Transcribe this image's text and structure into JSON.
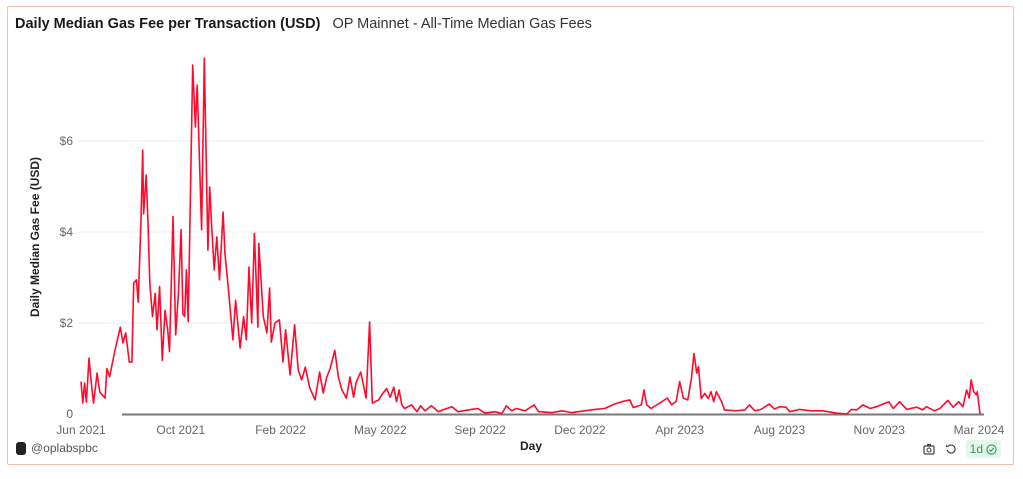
{
  "header": {
    "title": "Daily Median Gas Fee per Transaction (USD)",
    "subtitle": "OP Mainnet - All-Time Median Gas Fees"
  },
  "footer": {
    "author": "@oplabspbc",
    "refresh_badge": "1d",
    "icons": [
      "camera-icon",
      "refresh-icon",
      "check-circle-icon"
    ]
  },
  "colors": {
    "line": "#ff0a2c",
    "border": "#f4bfb0",
    "badge_bg": "#e3f6e9",
    "badge_text": "#2e9b52"
  },
  "chart_data": {
    "type": "line",
    "title": "Daily Median Gas Fee per Transaction (USD)",
    "xlabel": "Day",
    "ylabel": "Daily Median Gas Fee (USD)",
    "x_tick_labels": [
      "Jun 2021",
      "Oct 2021",
      "Feb 2022",
      "May 2022",
      "Sep 2022",
      "Dec 2022",
      "Apr 2023",
      "Aug 2023",
      "Nov 2023",
      "Mar 2024"
    ],
    "y_ticks": [
      0,
      2,
      4,
      6
    ],
    "y_tick_labels": [
      "0",
      "$2",
      "$4",
      "$6"
    ],
    "xlim": [
      "2021-06-01",
      "2024-03-03"
    ],
    "ylim": [
      0,
      7.9
    ],
    "grid": true,
    "legend": "none",
    "series": [
      {
        "x": [
          "2021-06-01",
          "2021-06-03",
          "2021-06-05",
          "2021-06-07",
          "2021-06-10",
          "2021-06-12",
          "2021-06-15",
          "2021-06-19",
          "2021-06-22",
          "2021-06-28",
          "2021-06-30",
          "2021-07-03",
          "2021-07-09",
          "2021-07-15",
          "2021-07-18",
          "2021-07-21",
          "2021-07-25",
          "2021-07-28",
          "2021-07-30",
          "2021-08-02",
          "2021-08-04",
          "2021-08-07",
          "2021-08-09",
          "2021-08-10",
          "2021-08-13",
          "2021-08-15",
          "2021-08-17",
          "2021-08-20",
          "2021-08-23",
          "2021-08-25",
          "2021-08-28",
          "2021-08-31",
          "2021-09-03",
          "2021-09-06",
          "2021-09-08",
          "2021-09-12",
          "2021-09-15",
          "2021-09-18",
          "2021-09-21",
          "2021-09-23",
          "2021-09-25",
          "2021-09-27",
          "2021-09-29",
          "2021-10-04",
          "2021-10-07",
          "2021-10-09",
          "2021-10-14",
          "2021-10-17",
          "2021-10-21",
          "2021-10-23",
          "2021-10-25",
          "2021-10-28",
          "2021-10-31",
          "2021-11-03",
          "2021-11-07",
          "2021-11-09",
          "2021-11-13",
          "2021-11-18",
          "2021-11-21",
          "2021-11-26",
          "2021-11-30",
          "2021-12-03",
          "2021-12-06",
          "2021-12-09",
          "2021-12-12",
          "2021-12-16",
          "2021-12-17",
          "2021-12-22",
          "2021-12-26",
          "2021-12-29",
          "2021-12-31",
          "2022-01-04",
          "2022-01-09",
          "2022-01-13",
          "2022-01-16",
          "2022-01-21",
          "2022-01-26",
          "2022-01-30",
          "2022-02-03",
          "2022-02-07",
          "2022-02-12",
          "2022-02-18",
          "2022-02-23",
          "2022-02-27",
          "2022-03-03",
          "2022-03-07",
          "2022-03-12",
          "2022-03-16",
          "2022-03-20",
          "2022-03-25",
          "2022-03-29",
          "2022-04-02",
          "2022-04-05",
          "2022-04-10",
          "2022-04-16",
          "2022-04-20",
          "2022-04-23",
          "2022-04-30",
          "2022-05-05",
          "2022-05-09",
          "2022-05-13",
          "2022-05-17",
          "2022-05-20",
          "2022-05-23",
          "2022-05-26",
          "2022-05-29",
          "2022-06-06",
          "2022-06-12",
          "2022-06-16",
          "2022-06-21",
          "2022-06-28",
          "2022-07-06",
          "2022-07-11",
          "2022-07-21",
          "2022-07-28",
          "2022-08-12",
          "2022-08-19",
          "2022-08-27",
          "2022-09-07",
          "2022-09-15",
          "2022-09-20",
          "2022-09-26",
          "2022-10-01",
          "2022-10-11",
          "2022-10-21",
          "2022-10-26",
          "2022-11-10",
          "2022-11-21",
          "2022-12-02",
          "2022-12-17",
          "2022-12-28",
          "2023-01-08",
          "2023-01-19",
          "2023-01-29",
          "2023-02-05",
          "2023-02-09",
          "2023-02-18",
          "2023-02-21",
          "2023-02-24",
          "2023-03-01",
          "2023-03-13",
          "2023-03-19",
          "2023-03-24",
          "2023-03-29",
          "2023-04-02",
          "2023-04-06",
          "2023-04-11",
          "2023-04-15",
          "2023-04-18",
          "2023-04-21",
          "2023-04-23",
          "2023-04-26",
          "2023-04-30",
          "2023-05-04",
          "2023-05-07",
          "2023-05-10",
          "2023-05-13",
          "2023-05-19",
          "2023-05-22",
          "2023-06-04",
          "2023-06-14",
          "2023-06-19",
          "2023-06-25",
          "2023-07-02",
          "2023-07-11",
          "2023-07-17",
          "2023-07-23",
          "2023-07-30",
          "2023-08-03",
          "2023-08-14",
          "2023-08-27",
          "2023-09-09",
          "2023-09-24",
          "2023-10-06",
          "2023-10-11",
          "2023-10-17",
          "2023-10-24",
          "2023-11-01",
          "2023-11-08",
          "2023-11-22",
          "2023-11-27",
          "2023-12-04",
          "2023-12-12",
          "2023-12-23",
          "2023-12-30",
          "2024-01-03",
          "2024-01-12",
          "2024-01-18",
          "2024-01-27",
          "2024-02-02",
          "2024-02-08",
          "2024-02-13",
          "2024-02-17",
          "2024-02-20",
          "2024-02-22",
          "2024-02-25",
          "2024-02-28",
          "2024-02-29",
          "2024-03-03"
        ],
        "y": [
          0.71,
          0.24,
          0.68,
          0.26,
          1.23,
          0.79,
          0.24,
          0.9,
          0.48,
          0.35,
          1.0,
          0.82,
          1.4,
          1.91,
          1.56,
          1.78,
          1.14,
          1.14,
          2.88,
          2.95,
          2.46,
          4.2,
          5.8,
          4.4,
          5.25,
          4.2,
          2.88,
          2.14,
          2.65,
          1.85,
          2.8,
          1.18,
          2.28,
          1.85,
          1.37,
          4.34,
          1.74,
          2.65,
          4.05,
          2.2,
          2.14,
          3.17,
          2.03,
          7.67,
          6.31,
          7.23,
          4.05,
          7.82,
          3.6,
          4.99,
          4.2,
          3.17,
          3.89,
          2.95,
          4.44,
          3.54,
          2.72,
          1.63,
          2.5,
          1.45,
          2.14,
          1.63,
          3.23,
          2.0,
          3.97,
          1.91,
          3.75,
          2.14,
          1.78,
          2.77,
          1.58,
          2.0,
          2.07,
          1.14,
          1.85,
          0.86,
          1.96,
          0.97,
          0.75,
          1.03,
          0.57,
          0.31,
          0.92,
          0.46,
          0.81,
          1.01,
          1.4,
          0.81,
          0.53,
          0.35,
          0.81,
          0.37,
          0.7,
          0.92,
          0.35,
          2.02,
          0.24,
          0.31,
          0.46,
          0.56,
          0.37,
          0.59,
          0.27,
          0.53,
          0.2,
          0.12,
          0.2,
          0.05,
          0.18,
          0.07,
          0.18,
          0.05,
          0.09,
          0.16,
          0.05,
          0.1,
          0.12,
          0.02,
          0.05,
          0.01,
          0.18,
          0.07,
          0.12,
          0.07,
          0.2,
          0.05,
          0.03,
          0.07,
          0.03,
          0.07,
          0.1,
          0.12,
          0.22,
          0.28,
          0.31,
          0.14,
          0.2,
          0.53,
          0.2,
          0.12,
          0.27,
          0.35,
          0.2,
          0.28,
          0.71,
          0.35,
          0.31,
          0.78,
          1.33,
          0.9,
          1.04,
          0.34,
          0.45,
          0.34,
          0.49,
          0.27,
          0.49,
          0.27,
          0.09,
          0.07,
          0.09,
          0.2,
          0.07,
          0.1,
          0.22,
          0.11,
          0.16,
          0.15,
          0.05,
          0.1,
          0.07,
          0.07,
          0.02,
          0.0,
          0.1,
          0.09,
          0.2,
          0.12,
          0.16,
          0.27,
          0.12,
          0.27,
          0.1,
          0.15,
          0.09,
          0.16,
          0.07,
          0.12,
          0.3,
          0.15,
          0.27,
          0.16,
          0.53,
          0.35,
          0.75,
          0.49,
          0.42,
          0.49,
          0.0
        ]
      }
    ]
  }
}
